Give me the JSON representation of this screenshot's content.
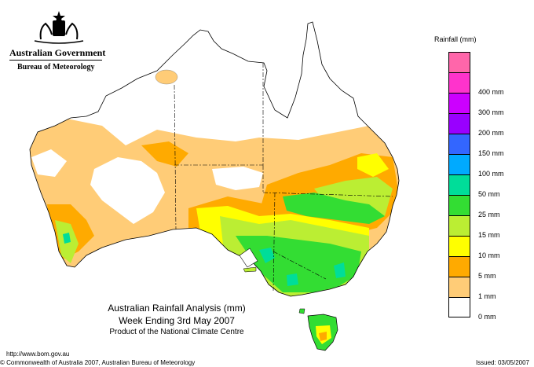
{
  "header": {
    "government": "Australian Government",
    "bureau": "Bureau of Meteorology"
  },
  "legend": {
    "title": "Rainfall (mm)",
    "items": [
      {
        "label": "",
        "color": "#ff66aa"
      },
      {
        "label": "400 mm",
        "color": "#ff33cc"
      },
      {
        "label": "300 mm",
        "color": "#cc00ff"
      },
      {
        "label": "200 mm",
        "color": "#9900ff"
      },
      {
        "label": "150 mm",
        "color": "#3366ff"
      },
      {
        "label": "100 mm",
        "color": "#00aaff"
      },
      {
        "label": "50 mm",
        "color": "#00dd99"
      },
      {
        "label": "25 mm",
        "color": "#33dd33"
      },
      {
        "label": "15 mm",
        "color": "#bbee33"
      },
      {
        "label": "10 mm",
        "color": "#ffff00"
      },
      {
        "label": "5 mm",
        "color": "#ffaa00"
      },
      {
        "label": "1 mm",
        "color": "#ffcc77"
      },
      {
        "label": "0 mm",
        "color": "#ffffff"
      }
    ]
  },
  "title": {
    "line1": "Australian Rainfall Analysis (mm)",
    "line2": "Week Ending 3rd May 2007",
    "line3": "Product of the National Climate Centre"
  },
  "footer": {
    "url": "http://www.bom.gov.au",
    "copyright": "© Commonwealth of Australia 2007, Australian Bureau of Meteorology",
    "issued": "Issued: 03/05/2007"
  },
  "colors": {
    "c1": "#ffcc77",
    "c5": "#ffaa00",
    "c10": "#ffff00",
    "c15": "#bbee33",
    "c25": "#33dd33",
    "c50": "#00dd99",
    "c100": "#00aaff",
    "c150": "#3366ff"
  }
}
